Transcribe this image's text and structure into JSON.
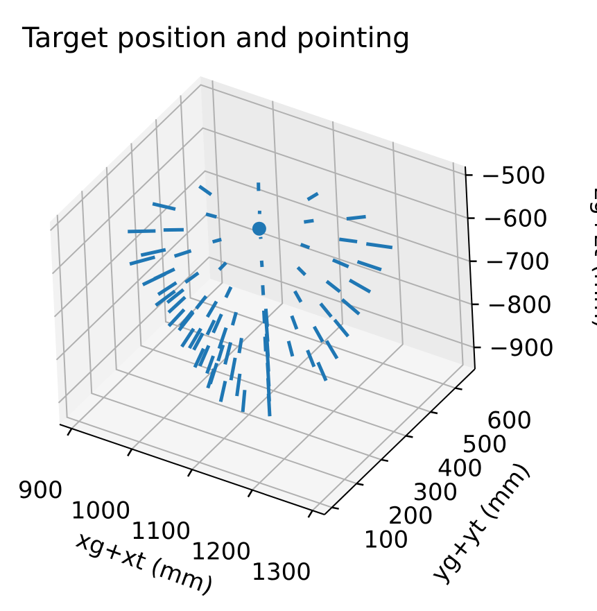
{
  "chart_data": {
    "type": "quiver3d",
    "title": "Target position and pointing",
    "xlabel": "xg+xt (mm)",
    "ylabel": "yg+yt (mm)",
    "zlabel": "zg+zt (mm)",
    "xlim": [
      880,
      1320
    ],
    "ylim": [
      70,
      680
    ],
    "zlim": [
      -950,
      -480
    ],
    "xticks": [
      900,
      1000,
      1100,
      1200,
      1300
    ],
    "yticks": [
      100,
      200,
      300,
      400,
      500,
      600
    ],
    "zticks": [
      -500,
      -600,
      -700,
      -800,
      -900
    ],
    "xtick_labels": [
      "900",
      "1000",
      "1100",
      "1200",
      "1300"
    ],
    "ytick_labels": [
      "100",
      "200",
      "300",
      "400",
      "500",
      "600"
    ],
    "ztick_labels": [
      "−500",
      "−600",
      "−700",
      "−800",
      "−900"
    ],
    "grid": true,
    "color": "#1f77b4",
    "focus_point": {
      "x": 1100,
      "y": 375,
      "z": -560
    },
    "target_grid": {
      "x_center": 1100,
      "y_center": 375,
      "x_radius": 200,
      "y_radius": 250,
      "z_top": -620,
      "z_bottom": -920,
      "num_rings": 7,
      "num_per_ring": 11,
      "start_angle_deg": 40,
      "end_angle_deg": 300
    },
    "arrow_length_mm": 45
  }
}
